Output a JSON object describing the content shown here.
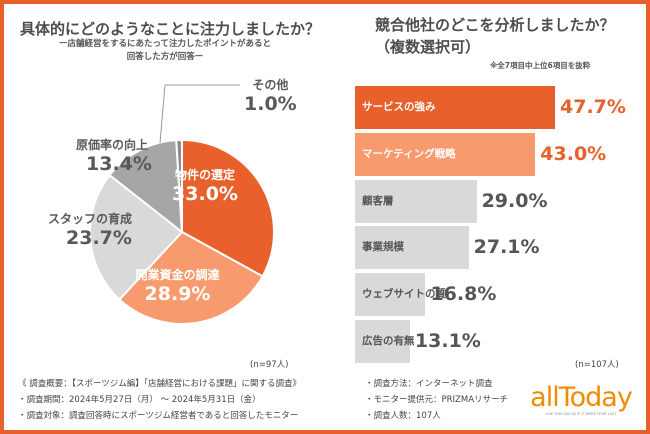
{
  "colors": {
    "accent": "#e8612c",
    "light_accent": "#f79a6e",
    "light_gray": "#d9d9d9",
    "gray": "#a6a6a6",
    "dark_gray": "#8c8c8c"
  },
  "chart_data": [
    {
      "type": "pie",
      "title": "具体的にどのようなことに注力しましたか？",
      "subtitle_lines": [
        "ー店舗経営をするにあたって注力したポイントがあると",
        "回答した方が回答ー"
      ],
      "n_label": "(n=97人)",
      "slices": [
        {
          "label": "物件の選定",
          "value": 33.0,
          "value_label": "33.0%",
          "color": "#e8612c"
        },
        {
          "label": "開業資金の調達",
          "value": 28.9,
          "value_label": "28.9%",
          "color": "#f79a6e"
        },
        {
          "label": "スタッフの育成",
          "value": 23.7,
          "value_label": "23.7%",
          "color": "#d9d9d9"
        },
        {
          "label": "原価率の向上",
          "value": 13.4,
          "value_label": "13.4%",
          "color": "#a6a6a6"
        },
        {
          "label": "その他",
          "value": 1.0,
          "value_label": "1.0%",
          "color": "#8c8c8c"
        }
      ]
    },
    {
      "type": "bar",
      "orientation": "horizontal",
      "title_lines": [
        "競合他社のどこを分析しましたか？",
        "（複数選択可）"
      ],
      "note": "※全7項目中上位6項目を抜粋",
      "n_label": "(n=107人)",
      "categories": [
        "サービスの強み",
        "マーケティング戦略",
        "顧客層",
        "事業規模",
        "ウェブサイトの質",
        "広告の有無"
      ],
      "values": [
        47.7,
        43.0,
        29.0,
        27.1,
        16.8,
        13.1
      ],
      "value_labels": [
        "47.7%",
        "43.0%",
        "29.0%",
        "27.1%",
        "16.8%",
        "13.1%"
      ],
      "colors": [
        "#e8612c",
        "#f79a6e",
        "#d9d9d9",
        "#d9d9d9",
        "#d9d9d9",
        "#d9d9d9"
      ]
    }
  ],
  "footer": {
    "left": [
      "《 調査概要：【スポーツジム編】「店舗経営における課題」に関する調査》",
      "・調査期間：2024年5月27日（月） ～ 2024年5月31日（金）",
      "・調査対象：調査回答時にスポーツジム経営者であると回答したモニター"
    ],
    "right": [
      "・調査方法：インターネット調査",
      "・モニター提供元：PRIZMAリサーチ",
      "・調査人数：107人"
    ],
    "logo": "allToday",
    "logo_tagline": "LIVE THIS DAY AS IF IT WERE YOUR LAST"
  }
}
